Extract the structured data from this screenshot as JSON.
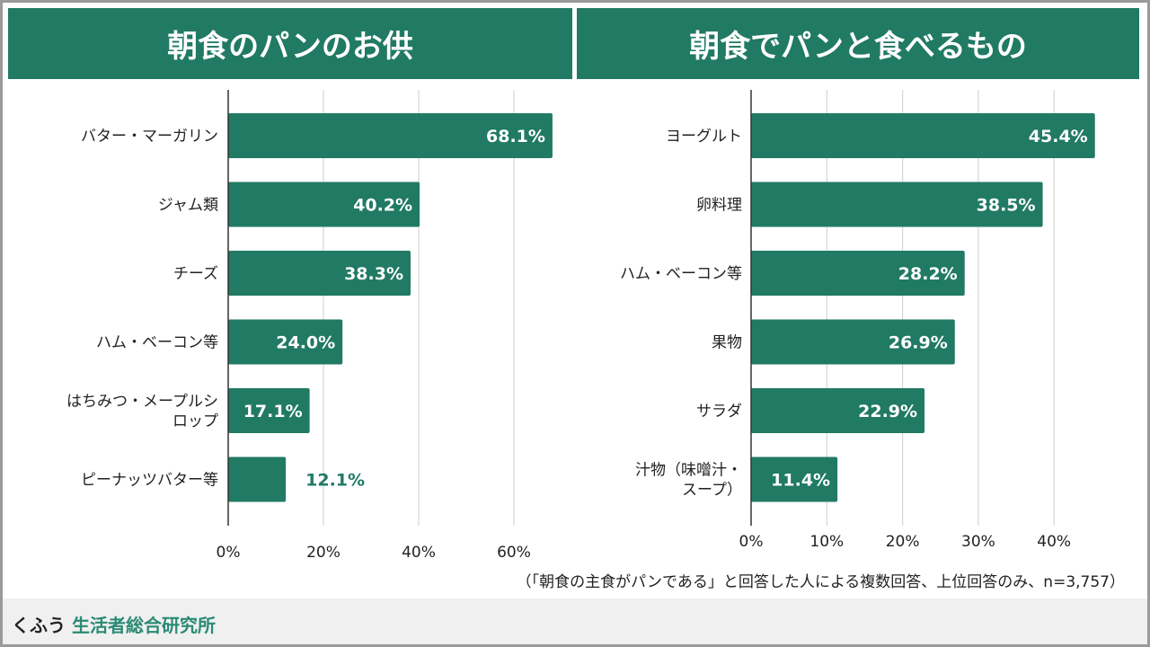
{
  "colors": {
    "bar": "#217a63",
    "title_bg": "#217a63",
    "grid": "#d5d5d5",
    "axis": "#333333",
    "brand_accent": "#2a8a74"
  },
  "chart_data": [
    {
      "type": "bar",
      "orientation": "horizontal",
      "title": "朝食のパンのお供",
      "categories": [
        "バター・マーガリン",
        "ジャム類",
        "チーズ",
        "ハム・ベーコン等",
        "はちみつ・メープルシロップ",
        "ピーナッツバター等"
      ],
      "category_lines": [
        [
          "バター・マーガリン"
        ],
        [
          "ジャム類"
        ],
        [
          "チーズ"
        ],
        [
          "ハム・ベーコン等"
        ],
        [
          "はちみつ・メープルシ",
          "ロップ"
        ],
        [
          "ピーナッツバター等"
        ]
      ],
      "values": [
        68.1,
        40.2,
        38.3,
        24.0,
        17.1,
        12.1
      ],
      "labels": [
        "68.1%",
        "40.2%",
        "38.3%",
        "24.0%",
        "17.1%",
        "12.1%"
      ],
      "label_outside": [
        false,
        false,
        false,
        false,
        false,
        true
      ],
      "xticks": [
        0,
        20,
        40,
        60
      ],
      "xtick_labels": [
        "0%",
        "20%",
        "40%",
        "60%"
      ],
      "xlim": [
        0,
        68.1
      ],
      "grid": true,
      "xlabel": "",
      "ylabel": ""
    },
    {
      "type": "bar",
      "orientation": "horizontal",
      "title": "朝食でパンと食べるもの",
      "categories": [
        "ヨーグルト",
        "卵料理",
        "ハム・ベーコン等",
        "果物",
        "サラダ",
        "汁物（味噌汁・スープ）"
      ],
      "category_lines": [
        [
          "ヨーグルト"
        ],
        [
          "卵料理"
        ],
        [
          "ハム・ベーコン等"
        ],
        [
          "果物"
        ],
        [
          "サラダ"
        ],
        [
          "汁物（味噌汁・",
          "スープ）"
        ]
      ],
      "values": [
        45.4,
        38.5,
        28.2,
        26.9,
        22.9,
        11.4
      ],
      "labels": [
        "45.4%",
        "38.5%",
        "28.2%",
        "26.9%",
        "22.9%",
        "11.4%"
      ],
      "label_outside": [
        false,
        false,
        false,
        false,
        false,
        false
      ],
      "xticks": [
        0,
        10,
        20,
        30,
        40
      ],
      "xtick_labels": [
        "0%",
        "10%",
        "20%",
        "30%",
        "40%"
      ],
      "xlim": [
        0,
        45.4
      ],
      "grid": true,
      "xlabel": "",
      "ylabel": ""
    }
  ],
  "footnote": "（「朝食の主食がパンである」と回答した人による複数回答、上位回答のみ、n=3,757）",
  "brand": {
    "prefix": "くふう",
    "name": "生活者総合研究所"
  }
}
